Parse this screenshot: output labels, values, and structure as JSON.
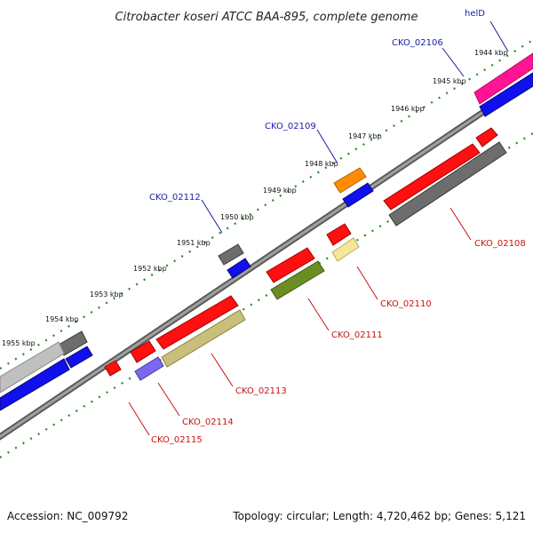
{
  "title": "Citrobacter koseri ATCC BAA-895, complete genome",
  "accession": "Accession: NC_009792",
  "topology": "Topology: circular; Length: 4,720,462 bp; Genes: 5,121",
  "kbp_labels": [
    "1944 kbp",
    "1945 kbp",
    "1946 kbp",
    "1947 kbp",
    "1948 kbp",
    "1949 kbp",
    "1950 kbp",
    "1951 kbp",
    "1952 kbp",
    "1953 kbp",
    "1954 kbp",
    "1955 kbp"
  ],
  "gene_labels_top": [
    "helD",
    "CKO_02106",
    "CKO_02109",
    "CKO_02112"
  ],
  "gene_labels_bottom": [
    "CKO_02108",
    "CKO_02110",
    "CKO_02111",
    "CKO_02113",
    "CKO_02114",
    "CKO_02115"
  ],
  "colors": {
    "backbone": "#8a8a8a",
    "dots": "#1e8c1e",
    "cds_red": "#ff1010",
    "cds_blue": "#1010ee",
    "gray_feature": "#6d6d6d",
    "olive": "#6b8e23",
    "khaki": "#c8c07a",
    "pink": "#ff1493",
    "orange": "#ff8c00",
    "pale_yellow": "#f4e69a",
    "lavender": "#7b68ee",
    "silver": "#c0c0c0"
  }
}
